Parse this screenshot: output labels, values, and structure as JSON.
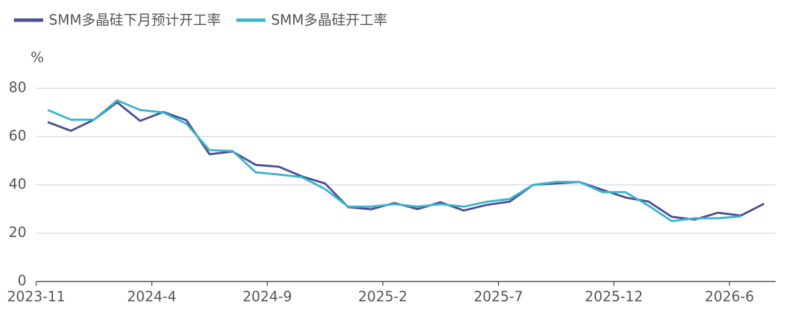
{
  "chart_data": {
    "type": "line",
    "y_unit": "%",
    "categories": [
      "2023-11",
      null,
      null,
      null,
      null,
      "2024-4",
      null,
      null,
      null,
      null,
      "2024-9",
      null,
      null,
      null,
      null,
      "2025-2",
      null,
      null,
      null,
      null,
      "2025-7",
      null,
      null,
      null,
      null,
      "2025-12",
      null,
      null,
      null,
      null,
      "2026-6",
      null
    ],
    "series": [
      {
        "name": "SMM多晶硅下月预计开工率",
        "color": "#4a5096",
        "values": [
          66,
          62.4,
          67,
          74.2,
          66.5,
          70.2,
          66.8,
          52.7,
          53.8,
          48.3,
          47.5,
          43.5,
          40.6,
          30.8,
          29.9,
          32.5,
          30,
          32.8,
          29.4,
          31.7,
          33.1,
          40,
          40.6,
          41.2,
          38,
          34.8,
          33.1,
          26.8,
          25.6,
          28.5,
          27.3,
          32.2
        ]
      },
      {
        "name": "SMM多晶硅开工率",
        "color": "#3cb4cd",
        "values": [
          71,
          67,
          67,
          75,
          71,
          70,
          65.3,
          54.4,
          54,
          45.2,
          44.3,
          43.2,
          38.3,
          31,
          31,
          32,
          31,
          32,
          31,
          33,
          34.2,
          40,
          41.2,
          41.2,
          37,
          37,
          31.4,
          25,
          26.2,
          26.2,
          27,
          null
        ]
      }
    ],
    "ylim": [
      0,
      80
    ],
    "yticks": [
      0,
      20,
      40,
      60,
      80
    ],
    "grid": true,
    "legend": "top-left"
  }
}
